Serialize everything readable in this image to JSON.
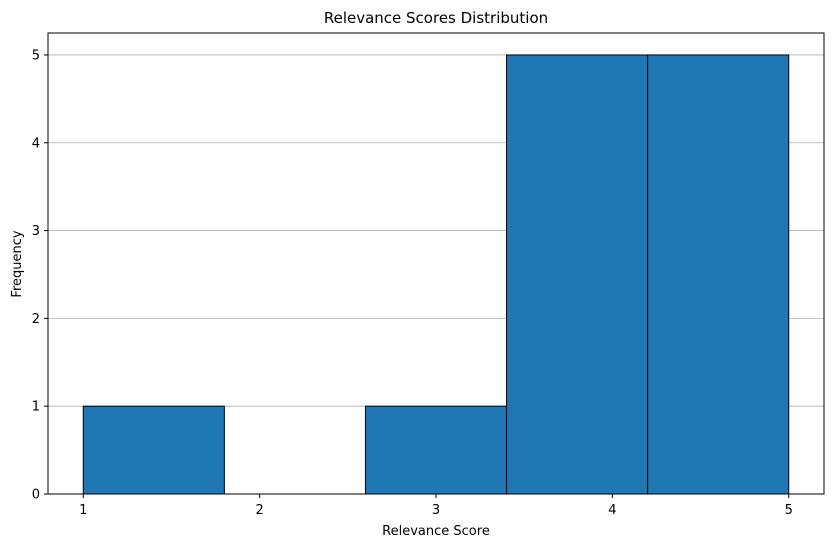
{
  "chart_data": {
    "type": "bar",
    "title": "Relevance Scores Distribution",
    "xlabel": "Relevance Score",
    "ylabel": "Frequency",
    "bins": [
      {
        "start": 1.0,
        "end": 1.8,
        "count": 1
      },
      {
        "start": 1.8,
        "end": 2.6,
        "count": 0
      },
      {
        "start": 2.6,
        "end": 3.4,
        "count": 1
      },
      {
        "start": 3.4,
        "end": 4.2,
        "count": 5
      },
      {
        "start": 4.2,
        "end": 5.0,
        "count": 5
      }
    ],
    "xlim": [
      0.8,
      5.2
    ],
    "ylim": [
      0,
      5.25
    ],
    "xticks": [
      1,
      2,
      3,
      4,
      5
    ],
    "yticks": [
      0,
      1,
      2,
      3,
      4,
      5
    ],
    "grid": "y",
    "bar_color": "#1f77b4",
    "edge_color": "#000000",
    "grid_color": "#b0b0b0"
  }
}
